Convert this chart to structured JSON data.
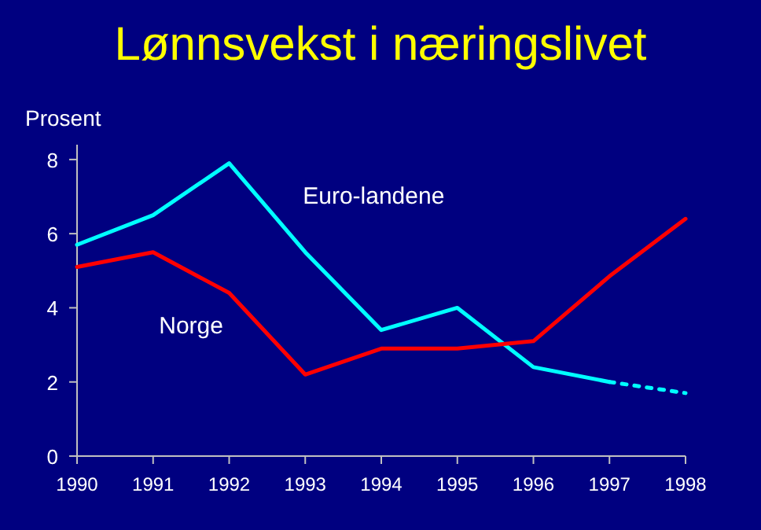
{
  "chart_data": {
    "type": "line",
    "title": "Lønnsvekst i næringslivet",
    "ylabel": "Prosent",
    "x": [
      1990,
      1991,
      1992,
      1993,
      1994,
      1995,
      1996,
      1997,
      1998
    ],
    "xlim": [
      1990,
      1998
    ],
    "xticks": [
      1990,
      1991,
      1992,
      1993,
      1994,
      1995,
      1996,
      1997,
      1998
    ],
    "ylim": [
      0,
      8.4
    ],
    "yticks": [
      0,
      2,
      4,
      6,
      8
    ],
    "grid": false,
    "marker": "none",
    "series": [
      {
        "name": "Euro-landene",
        "color": "#00ffff",
        "values": [
          5.7,
          6.5,
          7.9,
          5.5,
          3.4,
          4.0,
          2.4,
          2.0,
          null
        ]
      },
      {
        "color": "#00ffff",
        "line_style": "dotted",
        "values": [
          null,
          null,
          null,
          null,
          null,
          null,
          null,
          2.0,
          1.7
        ]
      },
      {
        "name": "Norge",
        "color": "#ff0000",
        "values": [
          5.1,
          5.5,
          4.4,
          2.2,
          2.9,
          2.9,
          3.1,
          4.85,
          6.4
        ]
      }
    ]
  }
}
